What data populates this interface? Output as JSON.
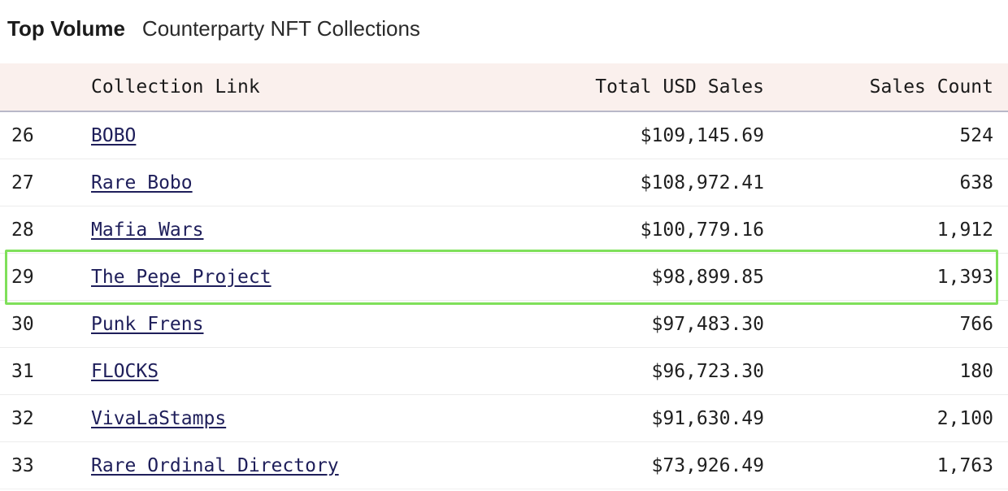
{
  "header": {
    "title": "Top Volume",
    "subtitle": "Counterparty NFT Collections"
  },
  "table": {
    "columns": {
      "rank": "",
      "collection": "Collection Link",
      "usd_sales": "Total USD Sales",
      "sales_count": "Sales Count"
    },
    "rows": [
      {
        "rank": "26",
        "name": "BOBO",
        "usd": "$109,145.69",
        "count": "524"
      },
      {
        "rank": "27",
        "name": "Rare Bobo",
        "usd": "$108,972.41",
        "count": "638"
      },
      {
        "rank": "28",
        "name": "Mafia Wars",
        "usd": "$100,779.16",
        "count": "1,912"
      },
      {
        "rank": "29",
        "name": "The Pepe Project",
        "usd": "$98,899.85",
        "count": "1,393"
      },
      {
        "rank": "30",
        "name": "Punk Frens",
        "usd": "$97,483.30",
        "count": "766"
      },
      {
        "rank": "31",
        "name": "FLOCKS",
        "usd": "$96,723.30",
        "count": "180"
      },
      {
        "rank": "32",
        "name": "VivaLaStamps",
        "usd": "$91,630.49",
        "count": "2,100"
      },
      {
        "rank": "33",
        "name": "Rare Ordinal Directory",
        "usd": "$73,926.49",
        "count": "1,763"
      }
    ]
  },
  "highlight": {
    "color": "#7fe05a",
    "row_rank": "29"
  }
}
